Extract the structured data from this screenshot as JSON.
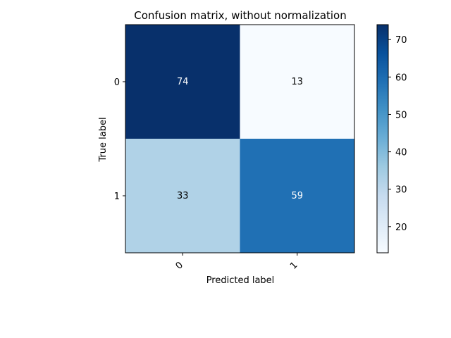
{
  "chart_data": {
    "type": "heatmap",
    "title": "Confusion matrix, without normalization",
    "xlabel": "Predicted label",
    "ylabel": "True label",
    "x_categories": [
      "0",
      "1"
    ],
    "y_categories": [
      "0",
      "1"
    ],
    "values": [
      [
        74,
        13
      ],
      [
        33,
        59
      ]
    ],
    "colormap": "Blues",
    "colorbar": {
      "range": [
        13,
        74
      ],
      "ticks": [
        20,
        30,
        40,
        50,
        60,
        70
      ]
    },
    "colors": {
      "cell_74": "#08306b",
      "cell_13": "#f7fbff",
      "cell_33": "#b0d2e7",
      "cell_59": "#2070b4",
      "label_on_dark": "#ffffff",
      "label_on_light": "#000000"
    }
  }
}
